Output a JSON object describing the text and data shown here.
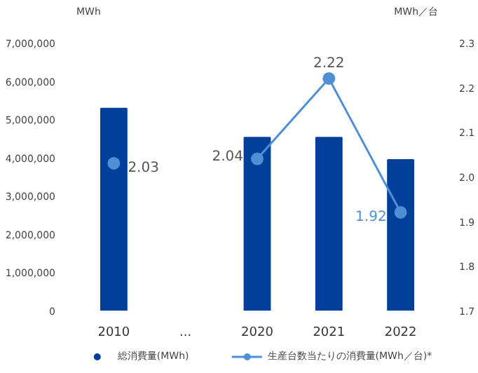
{
  "chart_data": {
    "type": "bar",
    "ylabel": "MWh",
    "y2label": "MWh／台",
    "categories": [
      "2010",
      "...",
      "2020",
      "2021",
      "2022"
    ],
    "series": [
      {
        "name": "総消費量(MWh)",
        "color": "#003f9a",
        "values": [
          5280000,
          null,
          4520000,
          4520000,
          3940000
        ]
      },
      {
        "name": "生産台数当たりの消費量(MWh／台)*",
        "type": "line",
        "axis": "y2",
        "color": "#4f8fd6",
        "values": [
          2.03,
          null,
          2.04,
          2.22,
          1.92
        ],
        "value_labels": [
          "2.03",
          null,
          "2.04",
          "2.22",
          "1.92"
        ]
      }
    ],
    "ylim": [
      0,
      7000000
    ],
    "yticks": [
      {
        "value": 0,
        "label": "0"
      },
      {
        "value": 1000000,
        "label": "1,000,000"
      },
      {
        "value": 2000000,
        "label": "2,000,000"
      },
      {
        "value": 3000000,
        "label": "3,000,000"
      },
      {
        "value": 4000000,
        "label": "4,000,000"
      },
      {
        "value": 5000000,
        "label": "5,000,000"
      },
      {
        "value": 6000000,
        "label": "6,000,000"
      },
      {
        "value": 7000000,
        "label": "7,000,000"
      }
    ],
    "y2lim": [
      1.7,
      2.3
    ],
    "y2ticks": [
      1.7,
      1.8,
      1.9,
      {
        "value": 2.0,
        "label": "2.0"
      },
      2.1,
      2.2,
      2.3
    ],
    "grid": false,
    "legend": "bottom",
    "marker": "circle",
    "line_style": "solid"
  }
}
